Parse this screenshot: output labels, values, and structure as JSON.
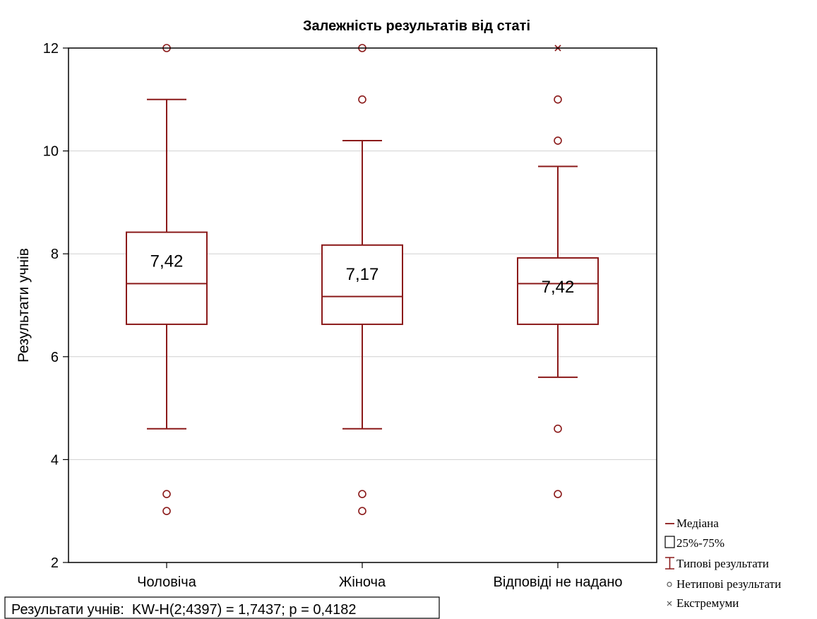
{
  "chart_data": {
    "type": "boxplot",
    "title": "Залежність результатів від статі",
    "ylabel": "Результати учнів",
    "xlabel": "",
    "ylim": [
      2,
      12
    ],
    "yticks": [
      "2",
      "4",
      "6",
      "8",
      "10",
      "12"
    ],
    "grid": true,
    "categories": [
      "Чоловіча",
      "Жіноча",
      "Відповіді не надано"
    ],
    "boxes": [
      {
        "category": "Чоловіча",
        "median": 7.42,
        "median_label": "7,42",
        "q1": 6.63,
        "q3": 8.42,
        "whisker_low": 4.6,
        "whisker_high": 11.0,
        "outliers": [
          3.33,
          3.0,
          12.0
        ],
        "extremes": []
      },
      {
        "category": "Жіноча",
        "median": 7.17,
        "median_label": "7,17",
        "q1": 6.63,
        "q3": 8.17,
        "whisker_low": 4.6,
        "whisker_high": 10.2,
        "outliers": [
          11.0,
          3.33,
          3.0,
          12.0
        ],
        "extremes": []
      },
      {
        "category": "Відповіді не надано",
        "median": 7.42,
        "median_label": "7,42",
        "q1": 6.63,
        "q3": 7.92,
        "whisker_low": 5.6,
        "whisker_high": 9.7,
        "outliers": [
          11.0,
          10.2,
          4.6,
          3.33
        ],
        "extremes": [
          12.0
        ]
      }
    ],
    "legend": {
      "placement": "bottom-right",
      "items": [
        {
          "symbol": "median-line",
          "label": "Медіана"
        },
        {
          "symbol": "box",
          "label": "25%-75%"
        },
        {
          "symbol": "whisker",
          "label": "Типові результати"
        },
        {
          "symbol": "circle",
          "label": "Нетипові результати"
        },
        {
          "symbol": "cross",
          "label": "Екстремуми"
        }
      ]
    },
    "stats_text": "Результати учнів:  KW-H(2;4397) = 1,7437; p = 0,4182",
    "colors": {
      "mark": "#8b1a1a",
      "grid": "#d0d0d0",
      "axis": "#000000"
    }
  }
}
